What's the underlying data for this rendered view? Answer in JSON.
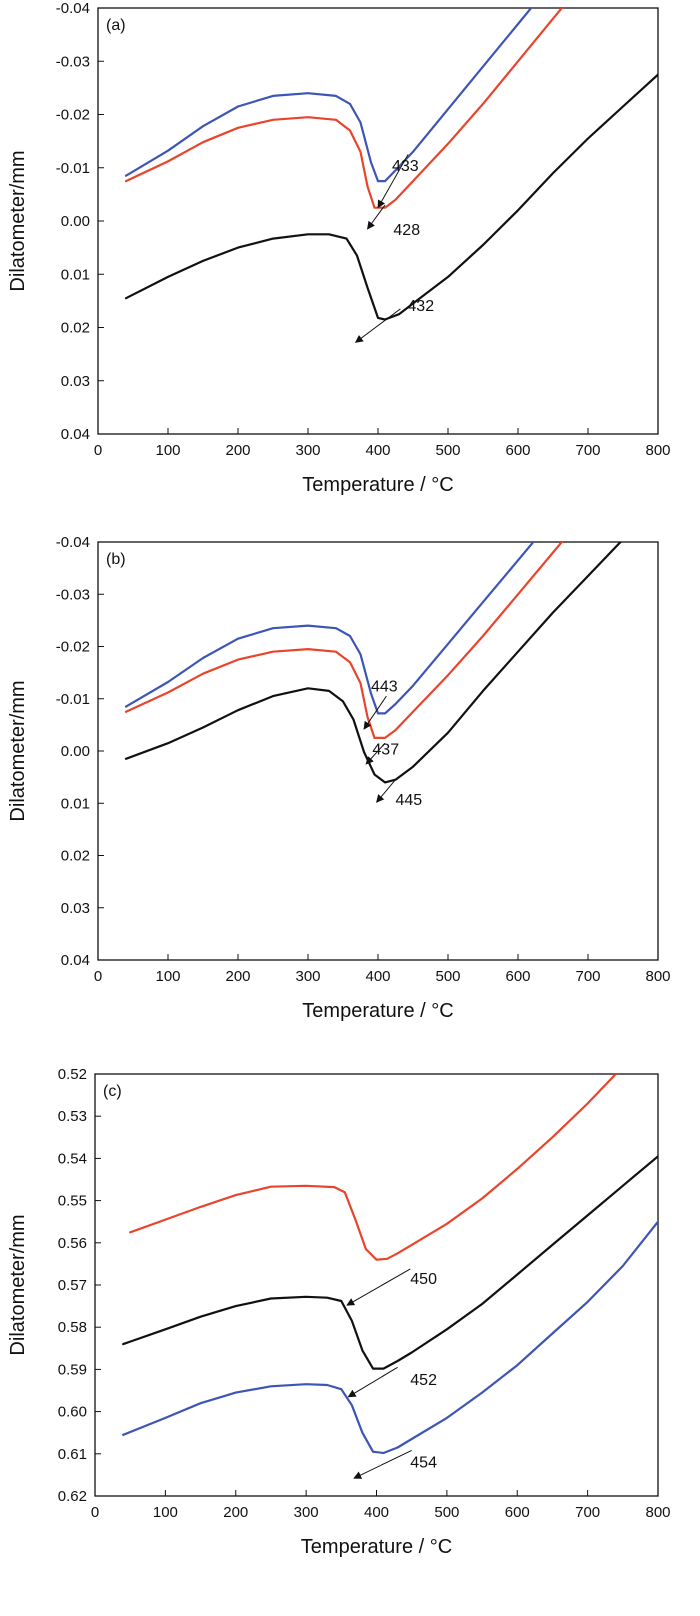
{
  "chart_data": [
    {
      "type": "line",
      "panel_label": "(a)",
      "xlabel": "Temperature / °C",
      "ylabel": "Dilatometer/mm",
      "xlim": [
        0,
        800
      ],
      "ylim": [
        -0.04,
        0.04
      ],
      "y_inverted": true,
      "xticks": [
        0,
        100,
        200,
        300,
        400,
        500,
        600,
        700,
        800
      ],
      "yticks": [
        -0.04,
        -0.03,
        -0.02,
        -0.01,
        0.0,
        0.01,
        0.02,
        0.03,
        0.04
      ],
      "ytick_labels": [
        "-0.04",
        "-0.03",
        "-0.02",
        "-0.01",
        "0.00",
        "0.01",
        "0.02",
        "0.03",
        "0.04"
      ],
      "series": [
        {
          "color": "#3d55b5",
          "x": [
            40,
            100,
            150,
            200,
            250,
            300,
            340,
            360,
            375,
            390,
            400,
            410,
            425,
            450,
            500,
            550,
            600,
            650
          ],
          "y": [
            -0.0085,
            -0.0132,
            -0.0178,
            -0.0215,
            -0.0235,
            -0.024,
            -0.0235,
            -0.022,
            -0.0185,
            -0.011,
            -0.0075,
            -0.0075,
            -0.0095,
            -0.013,
            -0.021,
            -0.029,
            -0.037,
            -0.045
          ]
        },
        {
          "color": "#e8452c",
          "x": [
            40,
            100,
            150,
            200,
            250,
            300,
            340,
            360,
            375,
            385,
            395,
            410,
            425,
            450,
            500,
            550,
            600,
            650,
            700
          ],
          "y": [
            -0.0075,
            -0.0112,
            -0.0148,
            -0.0175,
            -0.019,
            -0.0195,
            -0.019,
            -0.017,
            -0.013,
            -0.0065,
            -0.0025,
            -0.0025,
            -0.004,
            -0.0075,
            -0.0145,
            -0.022,
            -0.03,
            -0.038,
            -0.046
          ]
        },
        {
          "color": "#111111",
          "x": [
            40,
            100,
            150,
            200,
            250,
            300,
            330,
            355,
            370,
            385,
            400,
            410,
            430,
            450,
            500,
            550,
            600,
            650,
            700,
            750,
            800
          ],
          "y": [
            0.0145,
            0.0105,
            0.0075,
            0.005,
            0.0033,
            0.0025,
            0.0025,
            0.0033,
            0.0065,
            0.0125,
            0.0182,
            0.0185,
            0.0175,
            0.0155,
            0.0105,
            0.0045,
            -0.002,
            -0.009,
            -0.0155,
            -0.0215,
            -0.0275
          ]
        }
      ],
      "annotations": [
        {
          "text": "433",
          "label_x": 420,
          "label_y": -0.0105,
          "arrow_from": [
            443,
            -0.0125
          ],
          "arrow_to": [
            400,
            -0.0025
          ]
        },
        {
          "text": "428",
          "label_x": 422,
          "label_y": 0.0015,
          "arrow_from": [
            410,
            -0.003
          ],
          "arrow_to": [
            385,
            0.0015
          ]
        },
        {
          "text": "432",
          "label_x": 442,
          "label_y": 0.0158,
          "arrow_from": [
            432,
            0.0165
          ],
          "arrow_to": [
            368,
            0.0228
          ]
        }
      ]
    },
    {
      "type": "line",
      "panel_label": "(b)",
      "xlabel": "Temperature / °C",
      "ylabel": "Dilatometer/mm",
      "xlim": [
        0,
        800
      ],
      "ylim": [
        -0.04,
        0.04
      ],
      "y_inverted": true,
      "xticks": [
        0,
        100,
        200,
        300,
        400,
        500,
        600,
        700,
        800
      ],
      "yticks": [
        -0.04,
        -0.03,
        -0.02,
        -0.01,
        0.0,
        0.01,
        0.02,
        0.03,
        0.04
      ],
      "ytick_labels": [
        "-0.04",
        "-0.03",
        "-0.02",
        "-0.01",
        "0.00",
        "0.01",
        "0.02",
        "0.03",
        "0.04"
      ],
      "series": [
        {
          "color": "#3d55b5",
          "x": [
            40,
            100,
            150,
            200,
            250,
            300,
            340,
            360,
            375,
            390,
            400,
            410,
            425,
            450,
            500,
            550,
            600,
            650
          ],
          "y": [
            -0.0085,
            -0.0132,
            -0.0178,
            -0.0215,
            -0.0235,
            -0.024,
            -0.0235,
            -0.022,
            -0.0185,
            -0.011,
            -0.0072,
            -0.0072,
            -0.009,
            -0.0125,
            -0.0205,
            -0.0285,
            -0.0365,
            -0.0445
          ]
        },
        {
          "color": "#e8452c",
          "x": [
            40,
            100,
            150,
            200,
            250,
            300,
            340,
            360,
            375,
            385,
            395,
            410,
            425,
            450,
            500,
            550,
            600,
            650,
            700
          ],
          "y": [
            -0.0075,
            -0.0112,
            -0.0148,
            -0.0175,
            -0.019,
            -0.0195,
            -0.019,
            -0.017,
            -0.013,
            -0.0065,
            -0.0025,
            -0.0025,
            -0.004,
            -0.0075,
            -0.0145,
            -0.022,
            -0.03,
            -0.038,
            -0.046
          ]
        },
        {
          "color": "#111111",
          "x": [
            40,
            100,
            150,
            200,
            250,
            300,
            330,
            350,
            365,
            380,
            395,
            410,
            425,
            450,
            500,
            550,
            600,
            650,
            700,
            750
          ],
          "y": [
            0.0015,
            -0.0015,
            -0.0045,
            -0.0078,
            -0.0105,
            -0.012,
            -0.0115,
            -0.0095,
            -0.006,
            0.0002,
            0.0045,
            0.006,
            0.0055,
            0.003,
            -0.0035,
            -0.0115,
            -0.019,
            -0.0265,
            -0.0335,
            -0.0405
          ]
        }
      ],
      "annotations": [
        {
          "text": "443",
          "label_x": 390,
          "label_y": -0.0125,
          "arrow_from": [
            412,
            -0.0105
          ],
          "arrow_to": [
            380,
            -0.0042
          ]
        },
        {
          "text": "437",
          "label_x": 392,
          "label_y": -0.0005,
          "arrow_from": [
            410,
            -0.0015
          ],
          "arrow_to": [
            383,
            0.0025
          ]
        },
        {
          "text": "445",
          "label_x": 425,
          "label_y": 0.0092,
          "arrow_from": [
            425,
            0.0055
          ],
          "arrow_to": [
            398,
            0.0098
          ]
        }
      ]
    },
    {
      "type": "line",
      "panel_label": "(c)",
      "xlabel": "Temperature / °C",
      "ylabel": "Dilatometer/mm",
      "xlim": [
        0,
        800
      ],
      "ylim": [
        0.52,
        0.62
      ],
      "y_inverted": true,
      "xticks": [
        0,
        100,
        200,
        300,
        400,
        500,
        600,
        700,
        800
      ],
      "yticks": [
        0.52,
        0.53,
        0.54,
        0.55,
        0.56,
        0.57,
        0.58,
        0.59,
        0.6,
        0.61,
        0.62
      ],
      "ytick_labels": [
        "0.52",
        "0.53",
        "0.54",
        "0.55",
        "0.56",
        "0.57",
        "0.58",
        "0.59",
        "0.60",
        "0.61",
        "0.62"
      ],
      "series": [
        {
          "color": "#e8452c",
          "x": [
            50,
            100,
            150,
            200,
            250,
            300,
            340,
            355,
            370,
            385,
            400,
            415,
            430,
            450,
            500,
            550,
            600,
            650,
            700,
            740
          ],
          "y": [
            0.5575,
            0.5545,
            0.5515,
            0.5487,
            0.5467,
            0.5465,
            0.5468,
            0.548,
            0.5545,
            0.5615,
            0.564,
            0.5638,
            0.5625,
            0.5605,
            0.5555,
            0.5495,
            0.5425,
            0.535,
            0.527,
            0.52
          ]
        },
        {
          "color": "#111111",
          "x": [
            40,
            100,
            150,
            200,
            250,
            300,
            330,
            350,
            365,
            380,
            395,
            410,
            430,
            450,
            500,
            550,
            600,
            650,
            700,
            750,
            800
          ],
          "y": [
            0.584,
            0.5805,
            0.5775,
            0.575,
            0.5732,
            0.5728,
            0.573,
            0.5738,
            0.5785,
            0.5855,
            0.5898,
            0.5898,
            0.588,
            0.586,
            0.5805,
            0.5745,
            0.5675,
            0.5605,
            0.5535,
            0.5465,
            0.5395
          ]
        },
        {
          "color": "#3d55b5",
          "x": [
            40,
            100,
            150,
            200,
            250,
            300,
            330,
            350,
            365,
            380,
            395,
            410,
            430,
            450,
            500,
            550,
            600,
            650,
            700,
            750,
            800
          ],
          "y": [
            0.6055,
            0.6015,
            0.598,
            0.5955,
            0.594,
            0.5935,
            0.5937,
            0.5947,
            0.5985,
            0.605,
            0.6095,
            0.6098,
            0.6085,
            0.6065,
            0.6015,
            0.5955,
            0.589,
            0.5815,
            0.574,
            0.5655,
            0.555
          ]
        }
      ],
      "annotations": [
        {
          "text": "450",
          "label_x": 448,
          "label_y": 0.5683,
          "arrow_from": [
            448,
            0.5662
          ],
          "arrow_to": [
            358,
            0.5748
          ]
        },
        {
          "text": "452",
          "label_x": 448,
          "label_y": 0.5923,
          "arrow_from": [
            430,
            0.5895
          ],
          "arrow_to": [
            360,
            0.5965
          ]
        },
        {
          "text": "454",
          "label_x": 448,
          "label_y": 0.6118,
          "arrow_from": [
            450,
            0.6092
          ],
          "arrow_to": [
            368,
            0.6158
          ]
        }
      ]
    }
  ]
}
